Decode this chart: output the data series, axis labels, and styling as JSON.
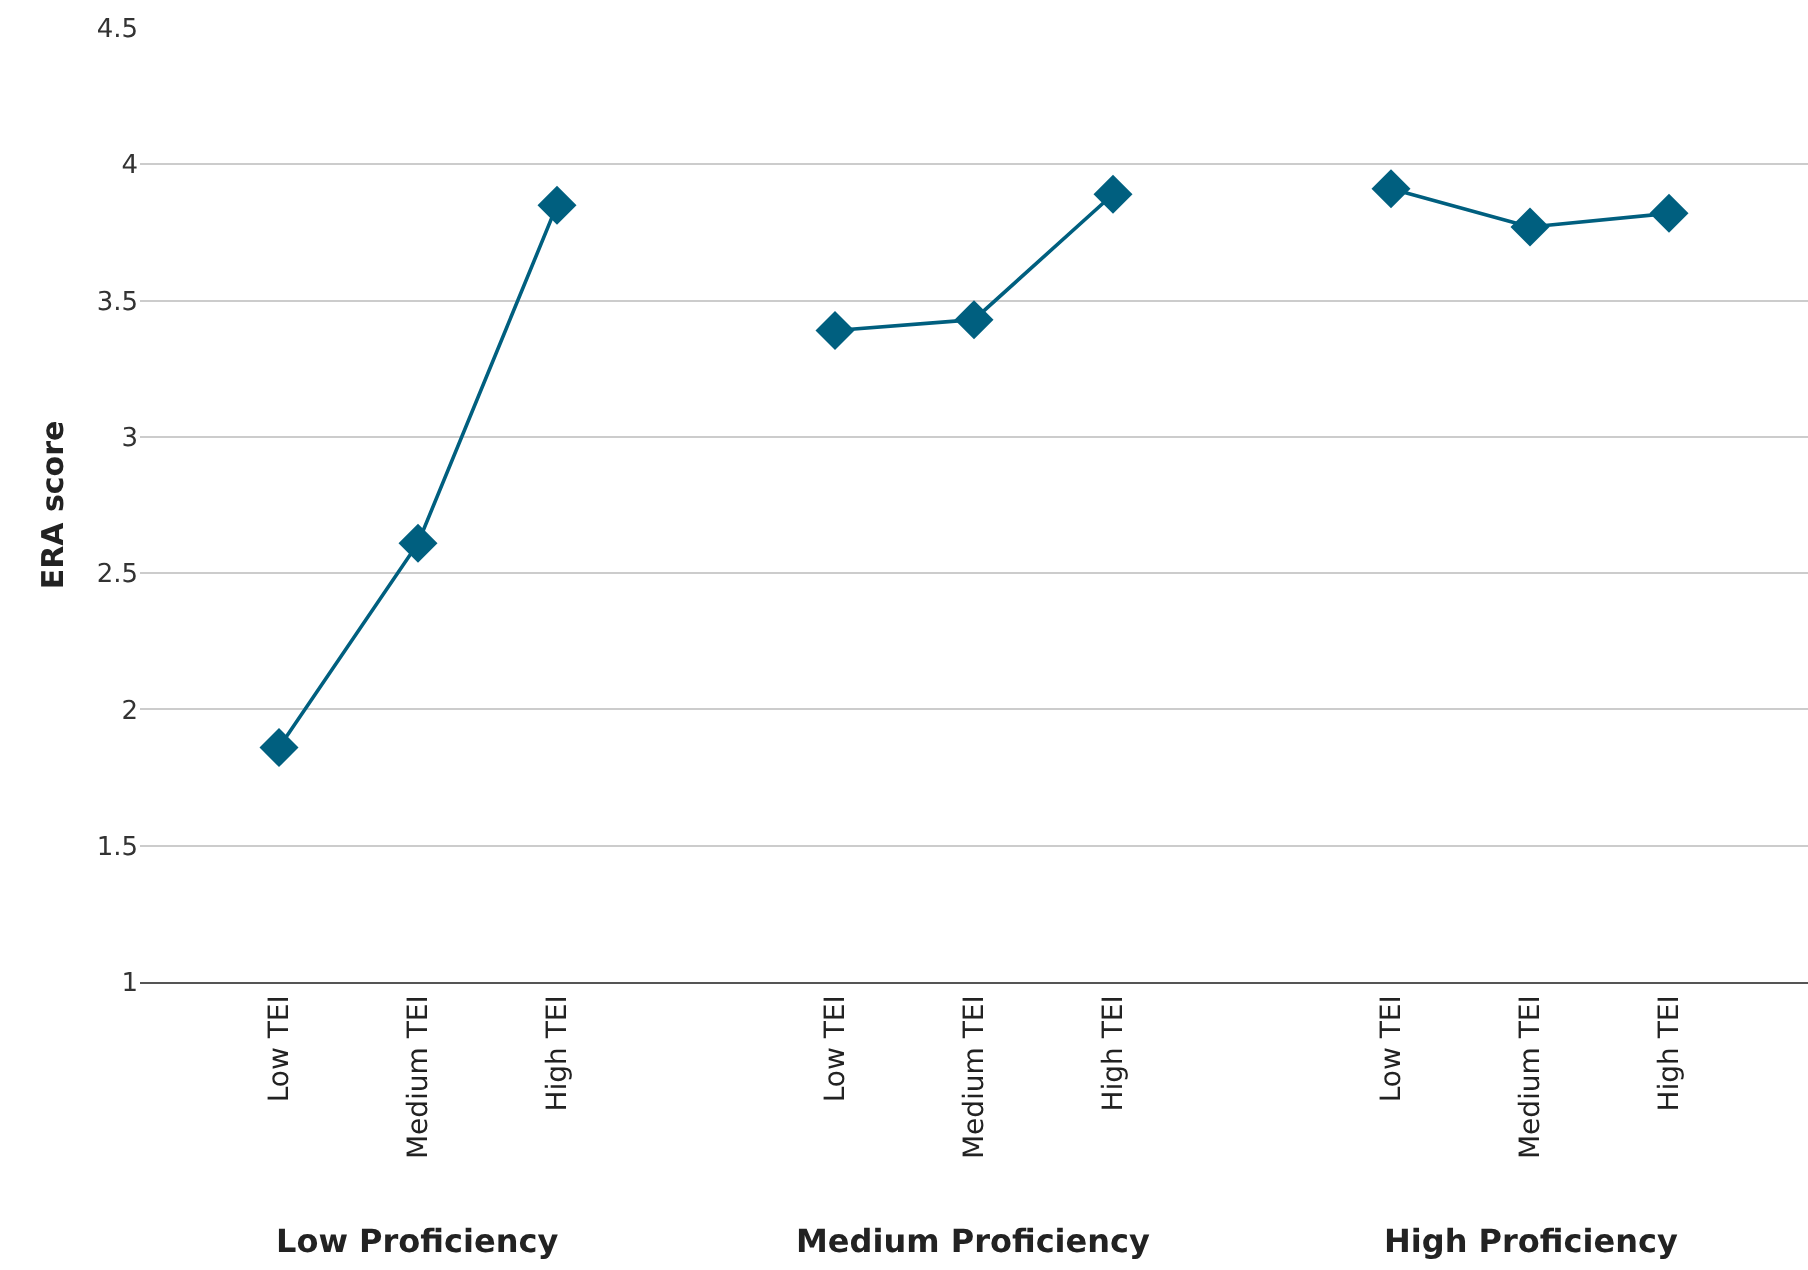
{
  "chart_data": {
    "type": "line",
    "ylabel": "ERA score",
    "categories": [
      "Low TEI",
      "Medium TEI",
      "High TEI",
      null,
      "Low TEI",
      "Medium TEI",
      "High TEI",
      null,
      "Low TEI",
      "Medium TEI",
      "High TEI"
    ],
    "series": [
      {
        "color": "#005f7f",
        "values": [
          1.86,
          2.61,
          3.85,
          null,
          3.39,
          3.43,
          3.89,
          null,
          3.91,
          3.77,
          3.82
        ]
      }
    ],
    "annotations": [
      "Low Proficiency",
      "Medium Proficiency",
      "High Proficiency"
    ],
    "ylim": [
      1,
      4.5
    ],
    "yticks": [
      1,
      1.5,
      2,
      2.5,
      3,
      3.5,
      4,
      4.5
    ],
    "grid": "y",
    "marker": "diamond",
    "line_style": "solid"
  }
}
